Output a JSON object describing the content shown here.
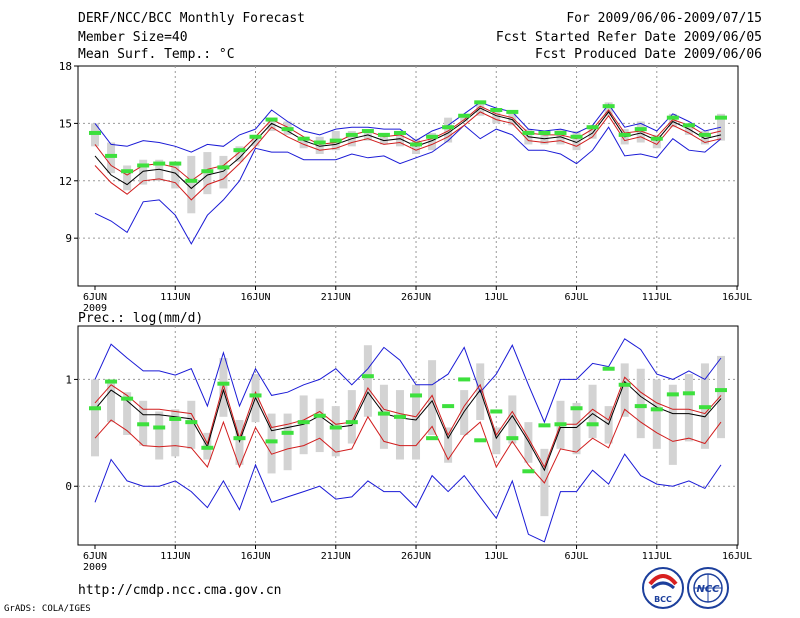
{
  "header": {
    "title": "DERF/NCC/BCC Monthly Forecast",
    "member_size": "Member Size=40",
    "variable": "Mean Surf. Temp.: °C",
    "period": "For 2009/06/06-2009/07/15",
    "started": "Fcst Started Refer Date 2009/06/05",
    "produced": "Fcst Produced Date 2009/06/06"
  },
  "footer": {
    "url": "http://cmdp.ncc.cma.gov.cn",
    "grads": "GrADS: COLA/IGES",
    "logo_bcc": "BCC",
    "logo_ncc": "NCC"
  },
  "colors": {
    "box": "#d3d3d3",
    "obs": "#3de03d",
    "mean": "#000000",
    "inner": "#d11e1e",
    "outer": "#1a1ad6",
    "grid": "#9a9a9a"
  },
  "chart_data": [
    {
      "type": "line",
      "title": "Mean Surf. Temp.: °C",
      "ylim": [
        6.5,
        18
      ],
      "yticks": [
        9,
        12,
        15,
        18
      ],
      "xtick_labels": [
        "6JUN",
        "11JUN",
        "16JUN",
        "21JUN",
        "26JUN",
        "1JUL",
        "6JUL",
        "11JUL",
        "16JUL"
      ],
      "year_label": "2009",
      "x_start_label": "6JUN",
      "days": 40,
      "series": [
        {
          "name": "max",
          "values": [
            15.0,
            13.9,
            13.8,
            14.1,
            14.0,
            13.8,
            13.5,
            13.9,
            13.8,
            14.4,
            14.7,
            15.7,
            15.1,
            14.6,
            14.4,
            14.7,
            14.8,
            14.8,
            14.7,
            14.7,
            14.1,
            14.6,
            14.9,
            15.5,
            16.1,
            15.8,
            15.6,
            14.7,
            14.6,
            14.7,
            14.5,
            14.9,
            16.0,
            14.8,
            15.0,
            14.6,
            15.5,
            15.1,
            14.6,
            14.8
          ]
        },
        {
          "name": "p75",
          "values": [
            13.9,
            12.8,
            12.3,
            12.8,
            12.9,
            12.7,
            12.0,
            12.6,
            12.8,
            13.5,
            14.3,
            15.2,
            14.8,
            14.3,
            13.9,
            14.0,
            14.4,
            14.6,
            14.3,
            14.4,
            14.0,
            14.2,
            14.6,
            15.2,
            15.9,
            15.5,
            15.3,
            14.5,
            14.4,
            14.4,
            14.2,
            14.7,
            15.7,
            14.5,
            14.6,
            14.3,
            15.2,
            14.9,
            14.4,
            14.6
          ]
        },
        {
          "name": "mean",
          "values": [
            13.3,
            12.3,
            11.8,
            12.5,
            12.6,
            12.4,
            11.6,
            12.3,
            12.5,
            13.2,
            14.1,
            15.0,
            14.6,
            14.1,
            13.8,
            13.9,
            14.2,
            14.4,
            14.1,
            14.2,
            13.8,
            14.1,
            14.5,
            15.1,
            15.8,
            15.4,
            15.2,
            14.3,
            14.2,
            14.3,
            14.0,
            14.5,
            15.6,
            14.3,
            14.5,
            14.1,
            15.1,
            14.7,
            14.2,
            14.4
          ]
        },
        {
          "name": "p25",
          "values": [
            12.8,
            11.9,
            11.3,
            12.0,
            12.1,
            11.9,
            11.0,
            11.8,
            12.1,
            12.9,
            13.8,
            14.8,
            14.3,
            13.9,
            13.6,
            13.7,
            14.0,
            14.2,
            13.9,
            14.0,
            13.6,
            13.9,
            14.3,
            14.9,
            15.6,
            15.2,
            15.0,
            14.1,
            14.0,
            14.1,
            13.8,
            14.3,
            15.4,
            14.1,
            14.3,
            13.9,
            14.9,
            14.5,
            14.0,
            14.2
          ]
        },
        {
          "name": "min",
          "values": [
            10.3,
            9.9,
            9.3,
            10.9,
            11.0,
            10.2,
            8.7,
            10.2,
            11.0,
            12.0,
            13.7,
            13.5,
            13.5,
            13.1,
            13.1,
            13.1,
            13.4,
            13.2,
            13.3,
            12.9,
            13.2,
            13.5,
            14.1,
            14.9,
            14.2,
            14.7,
            14.4,
            13.6,
            13.6,
            13.4,
            12.9,
            13.6,
            14.8,
            13.3,
            13.4,
            13.2,
            14.2,
            13.6,
            13.5,
            14.2
          ]
        },
        {
          "name": "box_top",
          "values": [
            15.0,
            14.0,
            12.8,
            13.1,
            13.1,
            13.0,
            13.3,
            13.5,
            13.3,
            13.8,
            14.4,
            15.3,
            15.1,
            14.3,
            14.3,
            14.6,
            14.6,
            14.6,
            14.5,
            14.6,
            14.2,
            14.5,
            15.3,
            15.4,
            16.2,
            15.7,
            15.5,
            14.7,
            14.6,
            14.7,
            14.6,
            14.9,
            16.1,
            14.7,
            15.1,
            14.4,
            15.5,
            15.0,
            14.6,
            15.5
          ]
        },
        {
          "name": "box_bottom",
          "values": [
            13.8,
            12.4,
            11.5,
            11.8,
            12.0,
            11.6,
            10.3,
            11.3,
            11.6,
            13.0,
            13.8,
            14.6,
            14.4,
            13.7,
            13.4,
            13.6,
            13.8,
            14.1,
            13.9,
            13.8,
            13.4,
            13.6,
            14.0,
            15.1,
            15.4,
            15.0,
            14.9,
            13.9,
            13.9,
            13.9,
            13.6,
            14.2,
            15.4,
            13.9,
            14.0,
            13.7,
            14.8,
            14.4,
            13.9,
            14.1
          ]
        },
        {
          "name": "observed",
          "values": [
            14.5,
            13.3,
            12.5,
            12.8,
            12.9,
            12.9,
            12.0,
            12.5,
            12.7,
            13.6,
            14.3,
            15.2,
            14.7,
            14.2,
            14.0,
            14.1,
            14.4,
            14.6,
            14.4,
            14.5,
            13.9,
            14.3,
            14.8,
            15.4,
            16.1,
            15.7,
            15.6,
            14.5,
            14.5,
            14.5,
            14.3,
            14.8,
            15.9,
            14.4,
            14.7,
            14.2,
            15.3,
            14.9,
            14.4,
            15.3
          ]
        }
      ]
    },
    {
      "type": "line",
      "title": "Prec.: log(mm/d)",
      "ylim": [
        -0.55,
        1.5
      ],
      "yticks": [
        0,
        1
      ],
      "xtick_labels": [
        "6JUN",
        "11JUN",
        "16JUN",
        "21JUN",
        "26JUN",
        "1JUL",
        "6JUL",
        "11JUL",
        "16JUL"
      ],
      "year_label": "2009",
      "x_start_label": "6JUN",
      "days": 40,
      "series": [
        {
          "name": "max",
          "values": [
            1.0,
            1.33,
            1.2,
            1.08,
            1.08,
            1.04,
            1.1,
            0.75,
            1.25,
            0.75,
            1.1,
            0.85,
            0.88,
            0.95,
            1.0,
            1.1,
            0.95,
            1.1,
            1.3,
            1.18,
            0.95,
            0.95,
            1.05,
            1.3,
            0.88,
            1.05,
            1.32,
            0.95,
            0.6,
            1.0,
            1.0,
            1.15,
            1.12,
            1.38,
            1.28,
            1.05,
            1.0,
            1.08,
            1.0,
            1.2
          ]
        },
        {
          "name": "p75",
          "values": [
            0.78,
            0.95,
            0.85,
            0.72,
            0.72,
            0.7,
            0.68,
            0.4,
            0.95,
            0.45,
            0.88,
            0.55,
            0.58,
            0.62,
            0.7,
            0.58,
            0.6,
            0.92,
            0.72,
            0.68,
            0.65,
            0.85,
            0.48,
            0.75,
            0.95,
            0.48,
            0.7,
            0.45,
            0.18,
            0.58,
            0.58,
            0.72,
            0.62,
            1.02,
            0.88,
            0.78,
            0.72,
            0.72,
            0.68,
            0.85
          ]
        },
        {
          "name": "mean",
          "values": [
            0.72,
            0.9,
            0.8,
            0.67,
            0.67,
            0.65,
            0.63,
            0.37,
            0.9,
            0.42,
            0.83,
            0.52,
            0.55,
            0.58,
            0.66,
            0.55,
            0.57,
            0.88,
            0.68,
            0.64,
            0.62,
            0.8,
            0.45,
            0.7,
            0.9,
            0.45,
            0.66,
            0.42,
            0.15,
            0.55,
            0.55,
            0.68,
            0.58,
            0.98,
            0.84,
            0.74,
            0.68,
            0.68,
            0.65,
            0.82
          ]
        },
        {
          "name": "p25",
          "values": [
            0.45,
            0.62,
            0.52,
            0.38,
            0.37,
            0.38,
            0.36,
            0.18,
            0.6,
            0.18,
            0.55,
            0.3,
            0.35,
            0.38,
            0.45,
            0.32,
            0.35,
            0.65,
            0.42,
            0.38,
            0.38,
            0.56,
            0.25,
            0.47,
            0.6,
            0.18,
            0.42,
            0.2,
            0.03,
            0.35,
            0.32,
            0.45,
            0.36,
            0.72,
            0.6,
            0.5,
            0.42,
            0.45,
            0.4,
            0.6
          ]
        },
        {
          "name": "min",
          "values": [
            -0.15,
            0.25,
            0.05,
            0.0,
            0.0,
            0.05,
            -0.05,
            -0.2,
            0.05,
            -0.22,
            0.2,
            -0.15,
            -0.1,
            -0.05,
            0.0,
            -0.12,
            -0.1,
            0.05,
            -0.05,
            -0.05,
            -0.2,
            0.1,
            -0.05,
            0.1,
            -0.1,
            -0.3,
            0.05,
            -0.45,
            -0.52,
            -0.05,
            -0.05,
            0.15,
            0.02,
            0.3,
            0.1,
            0.02,
            0.0,
            0.05,
            -0.02,
            0.2
          ]
        },
        {
          "name": "box_top",
          "values": [
            1.0,
            1.0,
            0.88,
            0.8,
            0.7,
            0.72,
            0.8,
            0.5,
            1.2,
            0.62,
            1.05,
            0.68,
            0.68,
            0.85,
            0.82,
            0.75,
            0.9,
            1.32,
            0.95,
            0.9,
            0.95,
            1.18,
            0.55,
            0.9,
            1.15,
            0.55,
            0.85,
            0.6,
            0.35,
            0.8,
            0.78,
            0.95,
            0.75,
            1.15,
            1.1,
            1.0,
            0.95,
            1.05,
            1.15,
            1.22
          ]
        },
        {
          "name": "box_bottom",
          "values": [
            0.28,
            0.6,
            0.48,
            0.38,
            0.25,
            0.28,
            0.35,
            0.25,
            0.65,
            0.2,
            0.6,
            0.12,
            0.15,
            0.3,
            0.32,
            0.28,
            0.4,
            0.65,
            0.35,
            0.25,
            0.25,
            0.48,
            0.22,
            0.48,
            0.62,
            0.3,
            0.4,
            0.22,
            -0.28,
            0.35,
            0.3,
            0.45,
            0.4,
            0.65,
            0.45,
            0.35,
            0.2,
            0.42,
            0.35,
            0.45
          ]
        },
        {
          "name": "observed",
          "values": [
            0.73,
            0.98,
            0.82,
            0.58,
            0.55,
            0.63,
            0.6,
            0.36,
            0.96,
            0.45,
            0.85,
            0.42,
            0.5,
            0.6,
            0.66,
            0.55,
            0.6,
            1.03,
            0.68,
            0.65,
            0.85,
            0.45,
            0.75,
            1.0,
            0.43,
            0.7,
            0.45,
            0.14,
            0.57,
            0.58,
            0.73,
            0.58,
            1.1,
            0.95,
            0.75,
            0.72,
            0.86,
            0.87,
            0.74,
            0.9
          ]
        }
      ]
    }
  ]
}
